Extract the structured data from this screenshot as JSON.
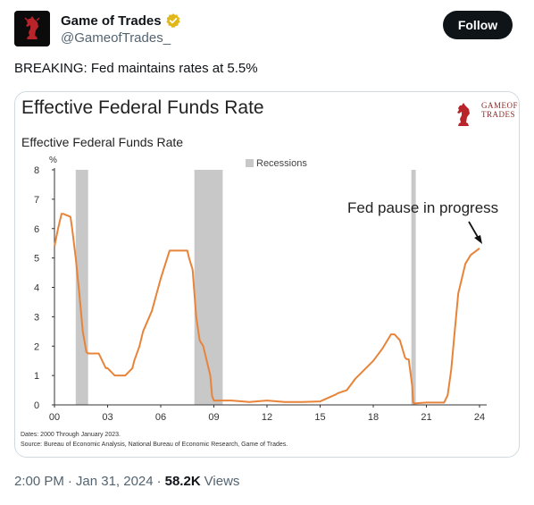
{
  "author": {
    "display_name": "Game of Trades",
    "handle": "@GameofTrades_",
    "avatar_icon": "game-of-trades-knight-logo",
    "verified_icon": "gold-verified-badge-icon",
    "verified_color": "#e2b719"
  },
  "follow_label": "Follow",
  "tweet_text": "BREAKING: Fed maintains rates at 5.5%",
  "meta": {
    "time": "2:00 PM",
    "separator": "·",
    "date": "Jan 31, 2024",
    "views_count": "58.2K",
    "views_label": "Views"
  },
  "logo": {
    "line1": "GAMEOF",
    "line2": "TRADES"
  },
  "chart_data": {
    "type": "line",
    "title": "Effective Federal Funds Rate",
    "subtitle": "Effective Federal Funds Rate",
    "y_unit": "%",
    "ylim": [
      0,
      8
    ],
    "y_ticks": [
      "0",
      "1",
      "2",
      "3",
      "4",
      "5",
      "6",
      "7",
      "8"
    ],
    "x_tick_labels": [
      "00",
      "03",
      "06",
      "09",
      "12",
      "15",
      "18",
      "21",
      "24"
    ],
    "xlim": [
      2000,
      2024
    ],
    "legend": "Recessions",
    "legend_position": "top-center",
    "annotation": "Fed pause in progress",
    "series_color": "#e8843a",
    "recession_color": "#c8c8c8",
    "recessions": [
      [
        2001.2,
        2001.9
      ],
      [
        2007.9,
        2009.5
      ],
      [
        2020.15,
        2020.4
      ]
    ],
    "series": [
      {
        "x": [
          2000.0,
          2000.2,
          2000.4,
          2000.5,
          2000.9,
          2001.0,
          2001.2,
          2001.4,
          2001.6,
          2001.8,
          2001.9,
          2002.0,
          2002.5,
          2002.9,
          2003.0,
          2003.4,
          2003.6,
          2004.0,
          2004.4,
          2004.5,
          2004.8,
          2005.0,
          2005.5,
          2006.0,
          2006.5,
          2007.0,
          2007.5,
          2007.6,
          2007.8,
          2008.0,
          2008.2,
          2008.4,
          2008.8,
          2008.9,
          2009.0,
          2010.0,
          2011.0,
          2012.0,
          2013.0,
          2014.0,
          2015.0,
          2015.9,
          2016.0,
          2016.5,
          2017.0,
          2017.5,
          2018.0,
          2018.5,
          2018.9,
          2019.0,
          2019.2,
          2019.5,
          2019.8,
          2019.9,
          2020.0,
          2020.2,
          2020.25,
          2020.3,
          2021.0,
          2022.0,
          2022.2,
          2022.4,
          2022.6,
          2022.8,
          2023.0,
          2023.2,
          2023.5,
          2024.0
        ],
        "y": [
          5.4,
          6.0,
          6.5,
          6.5,
          6.4,
          6.0,
          5.0,
          3.8,
          2.5,
          1.8,
          1.75,
          1.75,
          1.75,
          1.25,
          1.25,
          1.0,
          1.0,
          1.0,
          1.25,
          1.5,
          2.0,
          2.5,
          3.2,
          4.3,
          5.25,
          5.25,
          5.25,
          5.0,
          4.6,
          3.0,
          2.2,
          2.0,
          1.0,
          0.3,
          0.15,
          0.15,
          0.1,
          0.15,
          0.1,
          0.1,
          0.12,
          0.36,
          0.4,
          0.5,
          0.9,
          1.2,
          1.5,
          1.9,
          2.3,
          2.4,
          2.4,
          2.2,
          1.6,
          1.55,
          1.55,
          0.65,
          0.1,
          0.05,
          0.08,
          0.08,
          0.33,
          1.2,
          2.5,
          3.8,
          4.3,
          4.8,
          5.1,
          5.33
        ]
      }
    ]
  }
}
